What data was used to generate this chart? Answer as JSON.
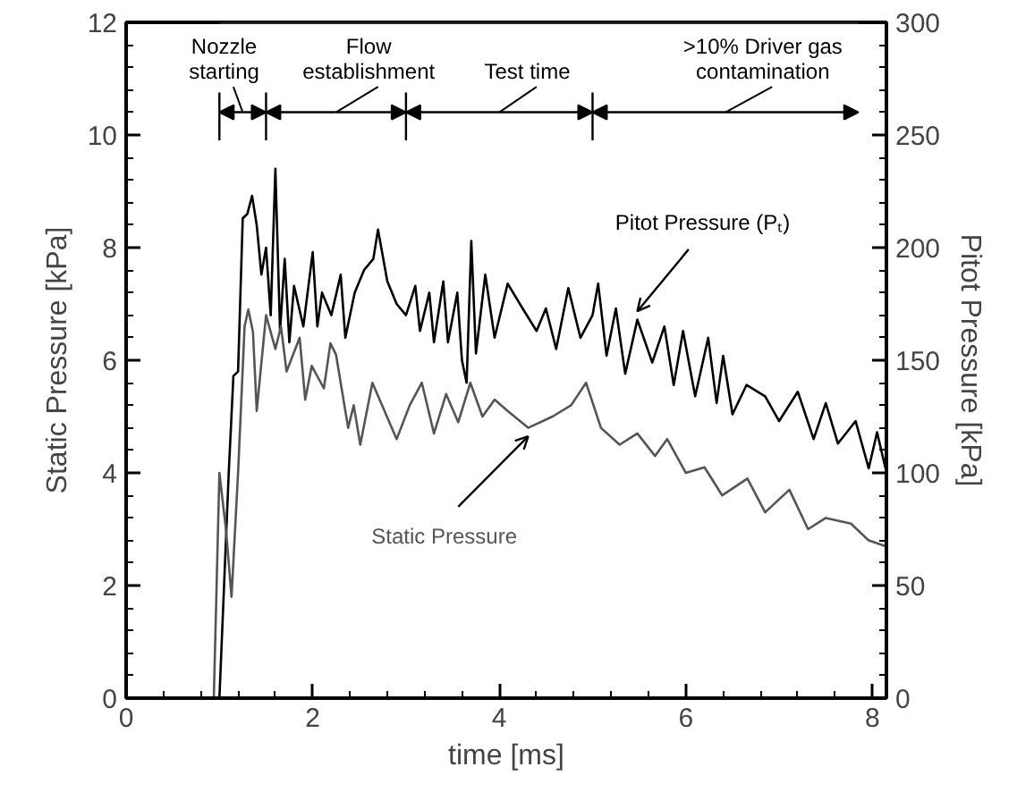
{
  "chart_data": {
    "type": "line",
    "xlabel": "time [ms]",
    "ylabel": "Static Pressure [kPa]",
    "y2label": "Pitot Pressure [kPa]",
    "xlim": [
      0,
      8.15
    ],
    "xticks": [
      0,
      2,
      4,
      6,
      8
    ],
    "ylim": [
      0,
      12
    ],
    "yticks": [
      0,
      2,
      4,
      6,
      8,
      10,
      12
    ],
    "y2lim": [
      0,
      300
    ],
    "y2ticks": [
      0,
      50,
      100,
      150,
      200,
      250,
      300
    ],
    "grid": false,
    "line_style": "solid",
    "marker": "none",
    "series": [
      {
        "name": "Pitot Pressure (Pₜ)",
        "color": "#000000",
        "axis": "y2",
        "x": [
          0.9,
          0.98,
          1.0,
          1.05,
          1.1,
          1.15,
          1.2,
          1.25,
          1.3,
          1.35,
          1.4,
          1.45,
          1.5,
          1.55,
          1.6,
          1.65,
          1.7,
          1.75,
          1.8,
          1.9,
          2.0,
          2.05,
          2.1,
          2.2,
          2.3,
          2.35,
          2.45,
          2.55,
          2.65,
          2.7,
          2.8,
          2.9,
          3.0,
          3.1,
          3.15,
          3.25,
          3.3,
          3.4,
          3.45,
          3.55,
          3.6,
          3.65,
          3.7,
          3.75,
          3.85,
          3.95,
          4.09,
          4.25,
          4.4,
          4.5,
          4.61,
          4.74,
          4.87,
          5.0,
          5.06,
          5.15,
          5.25,
          5.35,
          5.48,
          5.64,
          5.77,
          5.87,
          5.97,
          6.1,
          6.24,
          6.33,
          6.4,
          6.5,
          6.65,
          6.85,
          7.0,
          7.2,
          7.37,
          7.5,
          7.63,
          7.82,
          7.96,
          8.05,
          8.14
        ],
        "values": [
          0,
          0,
          0,
          50,
          100,
          143,
          145,
          213,
          215,
          223,
          210,
          188,
          200,
          170,
          235,
          163,
          195,
          158,
          183,
          165,
          198,
          165,
          180,
          170,
          188,
          160,
          180,
          190,
          195,
          208,
          185,
          175,
          170,
          183,
          163,
          180,
          158,
          185,
          158,
          180,
          150,
          140,
          203,
          153,
          188,
          160,
          184,
          173,
          163,
          173,
          155,
          182,
          160,
          170,
          184,
          152,
          173,
          144,
          168,
          149,
          165,
          139,
          163,
          134,
          160,
          131,
          152,
          126,
          139,
          134,
          123,
          136,
          115,
          131,
          113,
          123,
          102,
          118,
          102
        ]
      },
      {
        "name": "Static Pressure",
        "color": "#555555",
        "x": [
          0.9,
          0.94,
          1.0,
          1.07,
          1.13,
          1.2,
          1.27,
          1.31,
          1.36,
          1.4,
          1.5,
          1.6,
          1.66,
          1.72,
          1.86,
          1.92,
          1.99,
          2.12,
          2.19,
          2.25,
          2.31,
          2.38,
          2.44,
          2.51,
          2.64,
          2.77,
          2.9,
          3.04,
          3.17,
          3.3,
          3.43,
          3.56,
          3.69,
          3.82,
          3.95,
          4.09,
          4.31,
          4.57,
          4.77,
          4.93,
          5.09,
          5.29,
          5.48,
          5.67,
          5.8,
          6.0,
          6.2,
          6.39,
          6.66,
          6.85,
          7.11,
          7.31,
          7.5,
          7.77,
          7.96,
          8.14
        ],
        "values": [
          0,
          0,
          4.0,
          3.0,
          1.8,
          4.0,
          6.6,
          6.9,
          6.5,
          5.1,
          6.8,
          6.2,
          6.6,
          5.8,
          6.4,
          5.3,
          5.9,
          5.5,
          6.3,
          6.1,
          5.5,
          4.8,
          5.2,
          4.5,
          5.6,
          5.1,
          4.6,
          5.2,
          5.6,
          4.7,
          5.4,
          4.9,
          5.6,
          5.0,
          5.3,
          5.1,
          4.8,
          5.0,
          5.2,
          5.6,
          4.8,
          4.5,
          4.7,
          4.3,
          4.6,
          4.0,
          4.1,
          3.6,
          3.9,
          3.3,
          3.7,
          3.0,
          3.2,
          3.1,
          2.8,
          2.7
        ]
      }
    ],
    "bands": [
      {
        "axis": "x",
        "from": 1.0,
        "to": 1.5,
        "label": "Nozzle\nstarting",
        "color": "#ffffff"
      },
      {
        "axis": "x",
        "from": 1.5,
        "to": 3.0,
        "label": "Flow\nestablishment",
        "color": "#ffffff"
      },
      {
        "axis": "x",
        "from": 3.0,
        "to": 5.0,
        "label": "Test time",
        "color": "#ffffff"
      },
      {
        "axis": "x",
        "from": 5.0,
        "to": 7.85,
        "label": ">10% Driver gas\ncontamination",
        "color": "#ffffff"
      }
    ]
  }
}
